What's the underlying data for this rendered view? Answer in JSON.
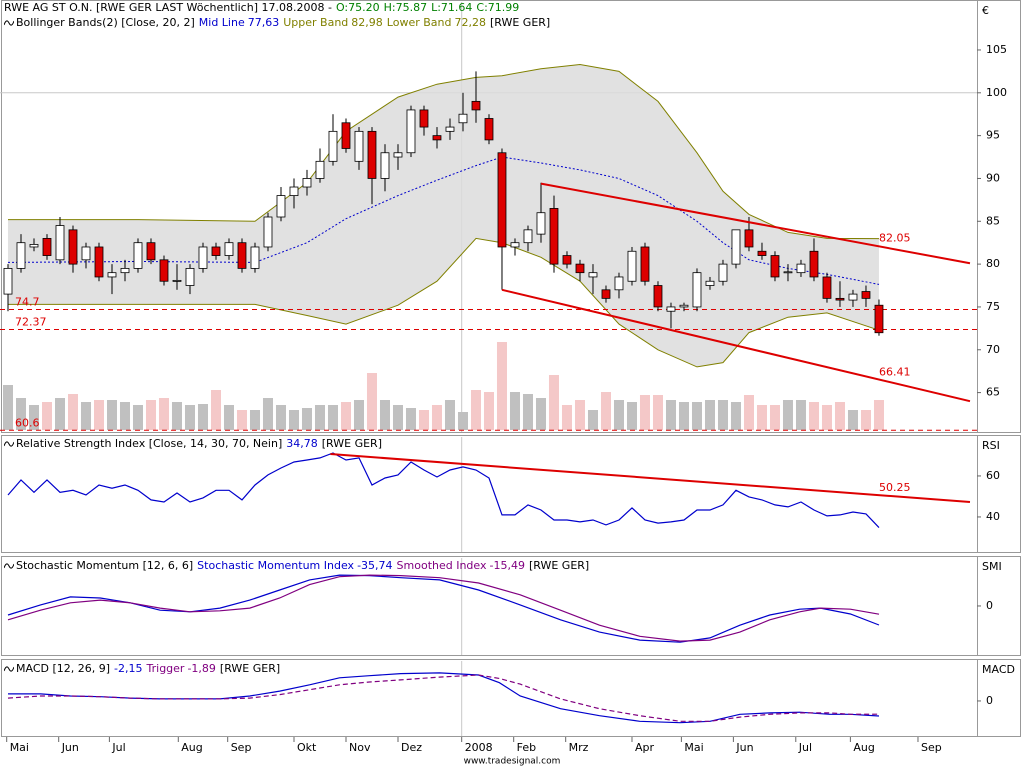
{
  "chart_data": [
    {
      "type": "candlestick",
      "title": "RWE AG ST O.N. [RWE GER LAST Wöchentlich] 17.08.2008 -",
      "ohlc_labels": [
        "O:75.20",
        "H:75.87",
        "L:71.64",
        "C:71.99"
      ],
      "axis_label": "€",
      "ylim": [
        60.4,
        110.6
      ],
      "yticks": [
        65,
        70,
        75,
        80,
        85,
        90,
        95,
        100,
        105
      ],
      "grid_y": [
        100
      ],
      "series": [
        {
          "up_color": "#ffffff",
          "down_color": "#dd0000",
          "values": [
            [
              76.5,
              80,
              74.5,
              79.5
            ],
            [
              79.5,
              83.5,
              79,
              82.5
            ],
            [
              82,
              83,
              81.5,
              82.3
            ],
            [
              83,
              83.5,
              80.5,
              81
            ],
            [
              80.5,
              85.5,
              80,
              84.5
            ],
            [
              84,
              84.5,
              79,
              80
            ],
            [
              80.5,
              82.5,
              79.5,
              82
            ],
            [
              82,
              82.5,
              78,
              78.5
            ],
            [
              78.5,
              80,
              76.5,
              79
            ],
            [
              79,
              80.5,
              78,
              79.5
            ],
            [
              79.5,
              83,
              79,
              82.5
            ],
            [
              82.5,
              83,
              80,
              80.5
            ],
            [
              80.5,
              81,
              77.5,
              78
            ],
            [
              78,
              80,
              77,
              78.1
            ],
            [
              77.5,
              80,
              76.5,
              79.5
            ],
            [
              79.5,
              82.5,
              79,
              82
            ],
            [
              82,
              82.5,
              80.5,
              81
            ],
            [
              81,
              83,
              80.5,
              82.5
            ],
            [
              82.5,
              83,
              79,
              79.5
            ],
            [
              79.5,
              82.5,
              79,
              82
            ],
            [
              82,
              86,
              81.5,
              85.5
            ],
            [
              85.5,
              89,
              85,
              88
            ],
            [
              88,
              90,
              86.5,
              89
            ],
            [
              89,
              91,
              88,
              90
            ],
            [
              90,
              93.5,
              89.5,
              92
            ],
            [
              92,
              97.5,
              91.5,
              95.5
            ],
            [
              96.5,
              97,
              93,
              93.5
            ],
            [
              92,
              96,
              91,
              95.5
            ],
            [
              95.5,
              96,
              87,
              90
            ],
            [
              90,
              94,
              88.5,
              93
            ],
            [
              92.5,
              94,
              91,
              93
            ],
            [
              93,
              98.5,
              92.5,
              98
            ],
            [
              98,
              98.5,
              95,
              96
            ],
            [
              95,
              96,
              93.5,
              94.5
            ],
            [
              95.5,
              97,
              94.5,
              96
            ],
            [
              96.5,
              100,
              95.5,
              97.5
            ],
            [
              99,
              102.5,
              96.5,
              98
            ],
            [
              97,
              97.5,
              94,
              94.5
            ],
            [
              93,
              93.5,
              77,
              82
            ],
            [
              82,
              83,
              81,
              82.5
            ],
            [
              82.5,
              84.5,
              81.5,
              84
            ],
            [
              83.5,
              89.5,
              82.5,
              86
            ],
            [
              86.5,
              88,
              79,
              80
            ],
            [
              81,
              81.5,
              79.5,
              80
            ],
            [
              80,
              80.5,
              78,
              79
            ],
            [
              78.5,
              80,
              76.5,
              79
            ],
            [
              77,
              77.5,
              75.5,
              76
            ],
            [
              77,
              79,
              76,
              78.5
            ],
            [
              78,
              82,
              77.5,
              81.5
            ],
            [
              82,
              82.5,
              77.5,
              78
            ],
            [
              77.5,
              78,
              74.5,
              75
            ],
            [
              74.5,
              75.5,
              72.5,
              75
            ],
            [
              75,
              75.5,
              74.5,
              75.2
            ],
            [
              75,
              79.5,
              74.5,
              79
            ],
            [
              77.5,
              78.5,
              77,
              78
            ],
            [
              78,
              80.5,
              77.5,
              80
            ],
            [
              80,
              84,
              79.5,
              84
            ],
            [
              84,
              85.5,
              81.5,
              82
            ],
            [
              81.5,
              82.5,
              80.5,
              81
            ],
            [
              81,
              81.5,
              78,
              78.5
            ],
            [
              79,
              80,
              78,
              79.1
            ],
            [
              79,
              80.5,
              78.5,
              80
            ],
            [
              81.5,
              83,
              78,
              78.5
            ],
            [
              78.5,
              79,
              75.5,
              76
            ],
            [
              76,
              78,
              75,
              75.8
            ],
            [
              75.8,
              77,
              75,
              76.5
            ],
            [
              76.8,
              77.5,
              75,
              76
            ],
            [
              75.2,
              75.87,
              71.64,
              71.99
            ]
          ]
        }
      ],
      "volume": {
        "up_color": "#c0c0c0",
        "down_color": "#f4c8c8",
        "values": [
          45,
          32,
          25,
          28,
          32,
          36,
          28,
          30,
          30,
          28,
          25,
          30,
          32,
          28,
          25,
          26,
          40,
          25,
          20,
          20,
          32,
          25,
          20,
          22,
          25,
          25,
          28,
          30,
          57,
          30,
          25,
          22,
          20,
          25,
          30,
          18,
          40,
          38,
          88,
          38,
          36,
          32,
          55,
          25,
          30,
          20,
          38,
          30,
          28,
          35,
          35,
          30,
          28,
          28,
          30,
          30,
          28,
          35,
          25,
          25,
          30,
          30,
          28,
          25,
          28,
          20,
          20,
          30
        ]
      },
      "bands": {
        "title": "Bollinger Bands(2) [Close, 20, 2]",
        "suffix": "[RWE GER]",
        "fill": "#dcdcdc",
        "x": [
          0,
          10,
          19,
          23,
          26,
          30,
          33,
          36,
          38,
          41,
          44,
          47,
          50,
          53,
          55,
          57,
          60,
          63,
          67
        ],
        "series": [
          {
            "name": "Mid Line",
            "value_label": "77,63",
            "color": "#0000cc",
            "values": [
              80.2,
              80.3,
              80.2,
              82.5,
              85.3,
              88,
              89.8,
              91.5,
              92.5,
              91.8,
              91,
              90,
              88,
              85,
              82.5,
              80.5,
              79.5,
              78.8,
              77.63
            ]
          },
          {
            "name": "Upper Band",
            "value_label": "82,98",
            "color": "#808000",
            "values": [
              85.2,
              85.2,
              85,
              89.5,
              95.5,
              99.5,
              101,
              101.8,
              102,
              102.8,
              103.3,
              102.5,
              99,
              93,
              88.5,
              85.8,
              83.7,
              83,
              82.98
            ]
          },
          {
            "name": "Lower Band",
            "value_label": "72,28",
            "color": "#808000",
            "values": [
              75.3,
              75.3,
              75.3,
              74,
              73,
              75.2,
              78,
              83,
              82.5,
              80.8,
              78,
              73,
              70,
              68,
              68.5,
              72,
              73.8,
              74.3,
              72.28
            ]
          }
        ]
      },
      "hlines": [
        {
          "value": 74.7,
          "color": "#dd0000"
        },
        {
          "value": 72.37,
          "color": "#dd0000"
        },
        {
          "value": 60.6,
          "color": "#dd0000"
        }
      ],
      "trendlines": [
        {
          "color": "#dd0000",
          "x": [
            41,
            74
          ],
          "values": [
            89.4,
            80.1
          ],
          "end_value": 82.05
        },
        {
          "color": "#dd0000",
          "x": [
            38,
            74
          ],
          "values": [
            77,
            64
          ],
          "end_value": 66.41
        }
      ]
    },
    {
      "type": "line",
      "title": "Relative Strength Index [Close, 14, 30, 70, Nein]",
      "suffix": "[RWE GER]",
      "axis_label": "RSI",
      "ylim": [
        22.9,
        79
      ],
      "yticks": [
        40,
        60
      ],
      "series": [
        {
          "value_label": "34,78",
          "color": "#0000cc",
          "values": [
            50.7,
            58,
            52,
            58,
            52,
            53,
            50.7,
            55.6,
            54,
            55.6,
            53,
            48.3,
            47.3,
            51.7,
            47.3,
            49.3,
            53,
            53,
            48.3,
            55.6,
            60.5,
            63.9,
            66.8,
            67.8,
            68.8,
            71.2,
            67.8,
            68.8,
            55.6,
            59,
            60.5,
            66.8,
            62.9,
            59.5,
            62.9,
            64.4,
            62.9,
            59,
            41,
            41,
            45.9,
            43.4,
            38.5,
            38.5,
            37.6,
            38.5,
            36.1,
            38.5,
            44.4,
            38.5,
            37,
            37.6,
            38.5,
            43.4,
            43.4,
            45.9,
            53,
            49.8,
            48.3,
            45.9,
            44.9,
            47.3,
            43.4,
            40.5,
            41,
            42.4,
            41.5,
            34.78
          ]
        }
      ],
      "trendlines": [
        {
          "color": "#dd0000",
          "x": [
            24.8,
            74
          ],
          "values": [
            70.7,
            47.3
          ],
          "end_value": 50.25
        }
      ]
    },
    {
      "type": "line",
      "title": "Stochastic Momentum [12, 6, 6]",
      "suffix": "[RWE GER]",
      "axis_label": "SMI",
      "ylim": [
        -92,
        90
      ],
      "yticks": [
        0
      ],
      "x": [
        0,
        2.5,
        4.8,
        7.1,
        9.4,
        11.7,
        14,
        16.3,
        18.6,
        20.9,
        23.2,
        25.5,
        27.8,
        30.2,
        33.2,
        36.2,
        39.4,
        42.5,
        45.5,
        48.6,
        51.7,
        54,
        56.3,
        58.6,
        60.9,
        62.5,
        64.8,
        67
      ],
      "series": [
        {
          "name": "Stochastic Momentum Index",
          "value_label": "-35,74",
          "color": "#0000cc",
          "values": [
            -17,
            2,
            17,
            15,
            6,
            -8,
            -11,
            -4,
            11,
            30,
            49,
            58,
            57,
            53,
            49,
            30,
            2,
            -26,
            -49,
            -64,
            -68,
            -60,
            -36,
            -17,
            -6,
            -4,
            -15,
            -35.74
          ]
        },
        {
          "name": "Smoothed Index",
          "value_label": "-15,49",
          "color": "#800080",
          "values": [
            -26,
            -8,
            6,
            11,
            6,
            -4,
            -11,
            -9,
            -4,
            15,
            40,
            55,
            58,
            57,
            53,
            43,
            21,
            -8,
            -36,
            -57,
            -66,
            -64,
            -49,
            -26,
            -11,
            -4,
            -6,
            -15.49
          ]
        }
      ]
    },
    {
      "type": "line",
      "title": "MACD [12, 26, 9]",
      "suffix": "[RWE GER]",
      "axis_label": "MACD",
      "ylim": [
        -5,
        5.7
      ],
      "yticks": [
        0
      ],
      "x": [
        0,
        2.5,
        4.8,
        7.1,
        9.4,
        11.7,
        14,
        16.3,
        18.6,
        20.9,
        23.2,
        25.5,
        27.8,
        30.2,
        33.2,
        36.2,
        37.8,
        39.4,
        42.5,
        45.5,
        48.6,
        51.7,
        54,
        56.3,
        58.6,
        60.9,
        63.2,
        64.8,
        67
      ],
      "series": [
        {
          "value_label": "-2,15",
          "color": "#0000cc",
          "values": [
            1,
            1,
            0.7,
            0.6,
            0.4,
            0.3,
            0.3,
            0.3,
            0.7,
            1.4,
            2.3,
            3.3,
            3.6,
            3.9,
            4,
            3.7,
            2.6,
            0.7,
            -1.1,
            -2.1,
            -2.9,
            -3.1,
            -2.9,
            -1.9,
            -1.7,
            -1.6,
            -1.9,
            -1.9,
            -2.15
          ]
        },
        {
          "name": "Trigger",
          "value_label": "-1,89",
          "color": "#800080",
          "dashed": true,
          "values": [
            0.4,
            0.7,
            0.7,
            0.6,
            0.4,
            0.3,
            0.3,
            0.3,
            0.4,
            0.9,
            1.6,
            2.3,
            2.7,
            3,
            3.4,
            3.7,
            3.2,
            2.4,
            0.3,
            -1.1,
            -2.1,
            -2.9,
            -2.9,
            -2.3,
            -1.9,
            -1.7,
            -1.7,
            -1.9,
            -1.89
          ]
        }
      ],
      "xlim": [
        -0.615,
        74.54
      ],
      "xticks": [
        {
          "value": -0.1,
          "label": "Mai"
        },
        {
          "value": 3.9,
          "label": "Jun"
        },
        {
          "value": 7.8,
          "label": "Jul"
        },
        {
          "value": 13.1,
          "label": "Aug"
        },
        {
          "value": 16.9,
          "label": "Sep"
        },
        {
          "value": 22,
          "label": "Okt"
        },
        {
          "value": 26,
          "label": "Nov"
        },
        {
          "value": 30,
          "label": "Dez"
        },
        {
          "value": 34.9,
          "label": "2008"
        },
        {
          "value": 38.9,
          "label": "Feb"
        },
        {
          "value": 42.9,
          "label": "Mrz"
        },
        {
          "value": 48,
          "label": "Apr"
        },
        {
          "value": 51.8,
          "label": "Mai"
        },
        {
          "value": 55.8,
          "label": "Jun"
        },
        {
          "value": 60.6,
          "label": "Jul"
        },
        {
          "value": 64.8,
          "label": "Aug"
        },
        {
          "value": 70,
          "label": "Sep"
        }
      ],
      "footer": "www.tradesignal.com"
    }
  ]
}
